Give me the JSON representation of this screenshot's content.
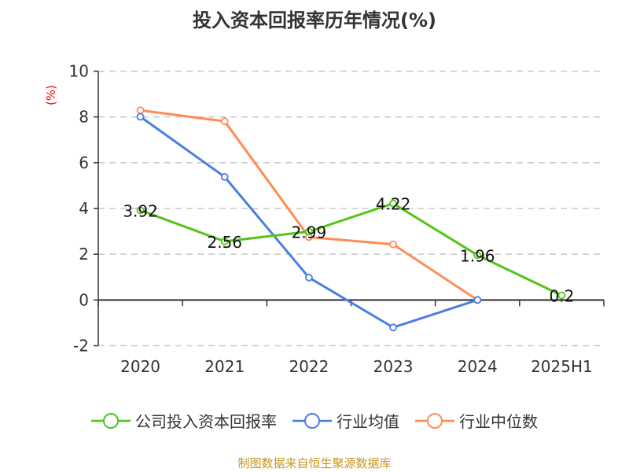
{
  "chart_data": {
    "type": "line",
    "title": "投入资本回报率历年情况(%)",
    "ylabel": "(%)",
    "categories": [
      "2020",
      "2021",
      "2022",
      "2023",
      "2024",
      "2025H1"
    ],
    "ylim": [
      -2,
      10
    ],
    "yticks": [
      -2,
      0,
      2,
      4,
      6,
      8,
      10
    ],
    "grid": true,
    "legend_position": "bottom",
    "series": [
      {
        "name": "公司投入资本回报率",
        "color": "#52c41a",
        "values": [
          3.92,
          2.56,
          2.99,
          4.22,
          1.96,
          0.2
        ],
        "labels": [
          "3.92",
          "2.56",
          "2.99",
          "4.22",
          "1.96",
          "0.2"
        ]
      },
      {
        "name": "行业均值",
        "color": "#4a7fe0",
        "values": [
          8.01,
          5.38,
          0.98,
          -1.2,
          0.0,
          null
        ]
      },
      {
        "name": "行业中位数",
        "color": "#ff8c55",
        "values": [
          8.29,
          7.81,
          2.75,
          2.43,
          0.0,
          null
        ]
      }
    ]
  },
  "source": "制图数据来自恒生聚源数据库"
}
